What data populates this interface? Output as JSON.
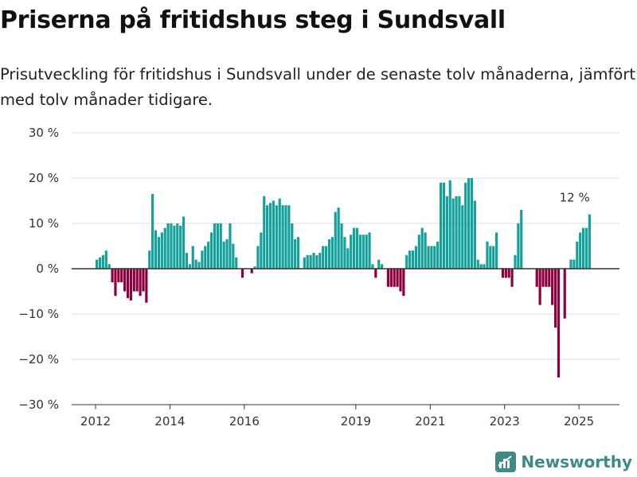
{
  "title": "Priserna på fritidshus steg i Sundsvall",
  "subtitle": "Prisutveckling för fritidshus i Sundsvall under de senaste tolv månaderna, jämfört med tolv månader tidigare.",
  "brand": "Newsworthy",
  "colors": {
    "positive": "#16a09a",
    "negative": "#8c0040",
    "grid": "#dddddd",
    "zero_line": "#333333",
    "brand": "#3f8a84"
  },
  "chart_data": {
    "type": "bar",
    "title": "",
    "xlabel": "",
    "ylabel": "",
    "ylim": [
      -30,
      30
    ],
    "y_ticks": [
      30,
      20,
      10,
      0,
      -10,
      -20,
      -30
    ],
    "y_tick_labels": [
      "30 %",
      "20 %",
      "10 %",
      "0 %",
      "−10 %",
      "−20 %",
      "−30 %"
    ],
    "x_ticks": [
      2012,
      2014,
      2016,
      2019,
      2021,
      2023,
      2025
    ],
    "x_tick_labels": [
      "2012",
      "2014",
      "2016",
      "2019",
      "2021",
      "2023",
      "2025"
    ],
    "x_range_years": [
      2012.0,
      2025.6
    ],
    "annotation": {
      "text": "12 %",
      "target": "last bar"
    },
    "x_start": "2012-01",
    "interval": "monthly",
    "values": [
      2,
      2.5,
      3,
      4,
      1,
      -3,
      -6,
      -3,
      -3,
      -5,
      -6.5,
      -7,
      -5,
      -5,
      -6,
      -5,
      -7.5,
      4,
      16.5,
      8.5,
      7,
      8,
      9,
      10,
      10,
      9.5,
      10,
      9.5,
      11.5,
      3.5,
      1,
      5,
      2,
      1.5,
      4,
      5,
      6,
      8,
      10,
      10,
      10,
      6,
      6.5,
      10,
      5.5,
      2.5,
      0,
      -2,
      0,
      0,
      -1,
      0.5,
      5,
      8,
      16,
      14,
      14.5,
      15,
      14,
      15.5,
      14,
      14,
      14,
      10,
      6.5,
      7,
      0,
      2.5,
      3,
      3,
      3.5,
      3,
      3.5,
      5,
      5,
      6.5,
      7,
      12.5,
      13.5,
      10,
      7,
      4.5,
      7.5,
      9,
      9,
      7.5,
      7.5,
      7.5,
      8,
      1,
      -2,
      2,
      1,
      0,
      -4,
      -4,
      -4,
      -4,
      -5,
      -6,
      3,
      4,
      4,
      5,
      7.5,
      9,
      8,
      5,
      5,
      5,
      6,
      19,
      19,
      16,
      19.5,
      15.5,
      16,
      16,
      14,
      19,
      20,
      20,
      15,
      2,
      1,
      1,
      6,
      5,
      5,
      8,
      0,
      -2,
      -2,
      -2,
      -4,
      3,
      10,
      13,
      0,
      0,
      0,
      0,
      -4,
      -8,
      -4,
      -4,
      -4,
      -8,
      -13,
      -24,
      0,
      -11,
      0,
      2,
      2,
      6,
      8,
      9,
      9,
      12
    ]
  }
}
